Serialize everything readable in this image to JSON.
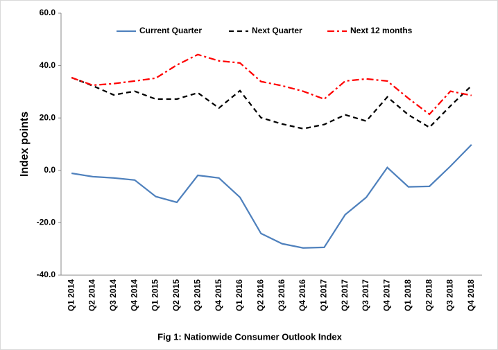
{
  "chart_data": {
    "type": "line",
    "caption": "Fig 1: Nationwide Consumer Outlook Index",
    "y_label": "Index points",
    "categories": [
      "Q1 2014",
      "Q2 2014",
      "Q3 2014",
      "Q4 2014",
      "Q1 2015",
      "Q2 2015",
      "Q3 2015",
      "Q4 2015",
      "Q1 2016",
      "Q2 2016",
      "Q3 2016",
      "Q4 2016",
      "Q1 2017",
      "Q2 2017",
      "Q3 2017",
      "Q4 2017",
      "Q1 2018",
      "Q2 2018",
      "Q3 2018",
      "Q4 2018"
    ],
    "series": [
      {
        "name": "Current Quarter",
        "color": "#4f81bd",
        "line_style": "solid",
        "values": [
          -1.1,
          -2.4,
          -2.9,
          -3.7,
          -10.0,
          -12.2,
          -1.9,
          -2.9,
          -10.3,
          -24.1,
          -28.0,
          -29.6,
          -29.4,
          -16.9,
          -10.3,
          1.1,
          -6.3,
          -6.1,
          1.6,
          9.8
        ]
      },
      {
        "name": "Next Quarter",
        "color": "#000000",
        "line_style": "dashed",
        "values": [
          35.4,
          32.3,
          28.8,
          30.2,
          27.2,
          27.2,
          29.6,
          23.8,
          30.4,
          20.1,
          17.7,
          15.9,
          17.5,
          21.2,
          18.8,
          28.0,
          21.2,
          16.4,
          24.6,
          32.3
        ]
      },
      {
        "name": "Next 12 months",
        "color": "#ff0000",
        "line_style": "dashdot",
        "values": [
          35.4,
          32.5,
          33.1,
          34.1,
          35.2,
          40.2,
          44.2,
          41.8,
          41.0,
          33.9,
          32.3,
          30.2,
          27.2,
          34.1,
          34.9,
          34.1,
          27.5,
          21.4,
          30.2,
          28.6
        ]
      }
    ],
    "ylim": [
      -40,
      60
    ],
    "yticks": [
      {
        "value": -40,
        "label": "-40.0"
      },
      {
        "value": -20,
        "label": "-20.0"
      },
      {
        "value": 0,
        "label": "0.0"
      },
      {
        "value": 20,
        "label": "20.0"
      },
      {
        "value": 40,
        "label": "40.0"
      },
      {
        "value": 60,
        "label": "60.0"
      }
    ],
    "legend": "top"
  }
}
